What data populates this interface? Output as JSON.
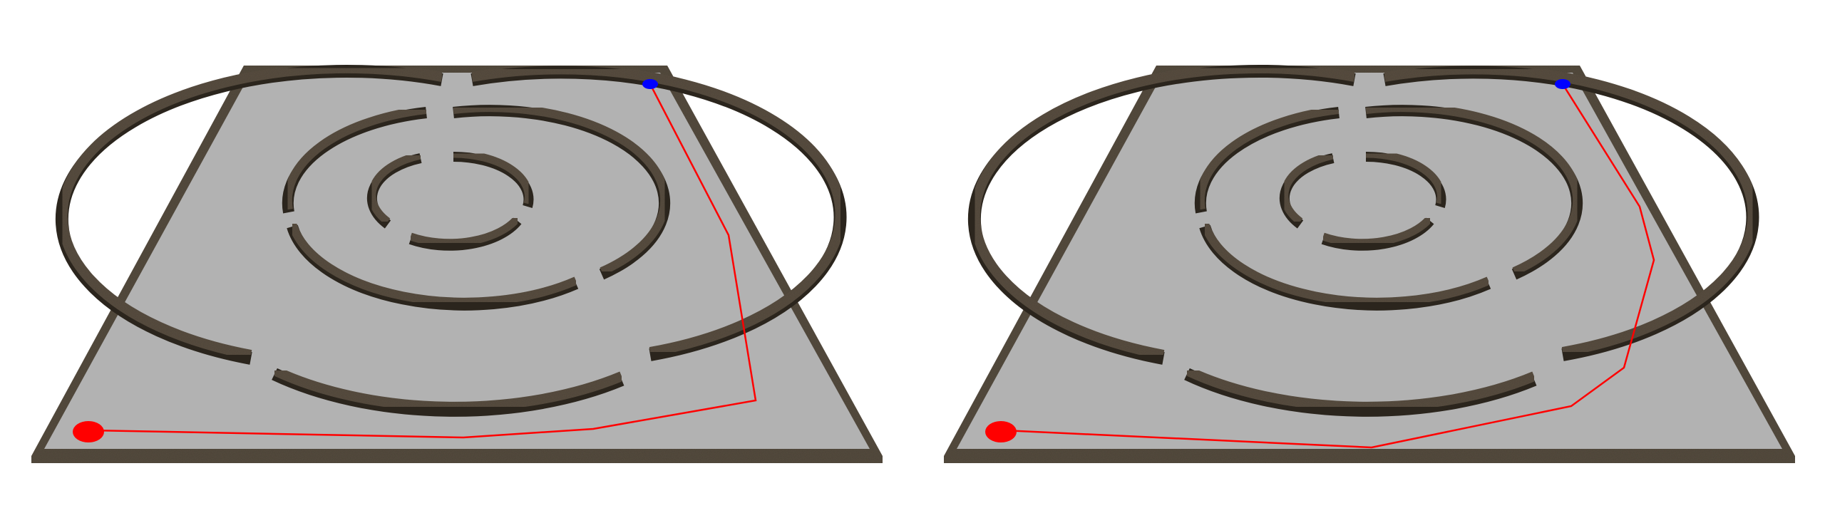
{
  "scene": {
    "background": "#ffffff",
    "floor_color": "#b2b2b2",
    "wall_color": "#5a5043",
    "wall_shadow_color": "#2b251d",
    "start_marker_color": "#ff0000",
    "goal_marker_color": "#0000ff",
    "path_color": "#ff0000"
  },
  "panels": [
    {
      "id": "left",
      "label": ""
    },
    {
      "id": "right",
      "label": ""
    }
  ]
}
